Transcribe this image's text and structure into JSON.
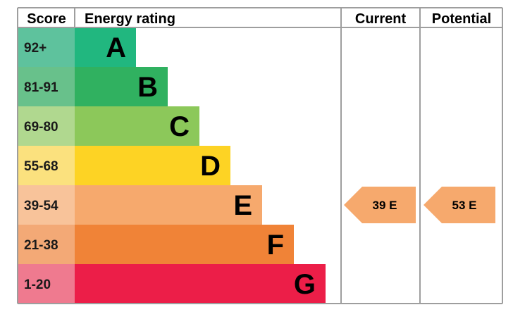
{
  "chart_data": {
    "type": "bar",
    "headers": {
      "score": "Score",
      "rating": "Energy rating",
      "current": "Current",
      "potential": "Potential"
    },
    "bands": [
      {
        "letter": "A",
        "range": "92+",
        "min": 92,
        "color": "#21b77f",
        "score_bg": "#5ec29d"
      },
      {
        "letter": "B",
        "range": "81-91",
        "min": 81,
        "color": "#30b160",
        "score_bg": "#68c18b"
      },
      {
        "letter": "C",
        "range": "69-80",
        "min": 69,
        "color": "#8cc85a",
        "score_bg": "#b0d88f"
      },
      {
        "letter": "D",
        "range": "55-68",
        "min": 55,
        "color": "#fdd324",
        "score_bg": "#fbe17e"
      },
      {
        "letter": "E",
        "range": "39-54",
        "min": 39,
        "color": "#f6a96d",
        "score_bg": "#f8c39a"
      },
      {
        "letter": "F",
        "range": "21-38",
        "min": 21,
        "color": "#f08337",
        "score_bg": "#f3a976"
      },
      {
        "letter": "G",
        "range": "1-20",
        "min": 1,
        "color": "#ec1e48",
        "score_bg": "#ef7a8f"
      }
    ],
    "current": {
      "value": 39,
      "band": "E",
      "label": "39  E"
    },
    "potential": {
      "value": 53,
      "band": "E",
      "label": "53  E"
    }
  }
}
